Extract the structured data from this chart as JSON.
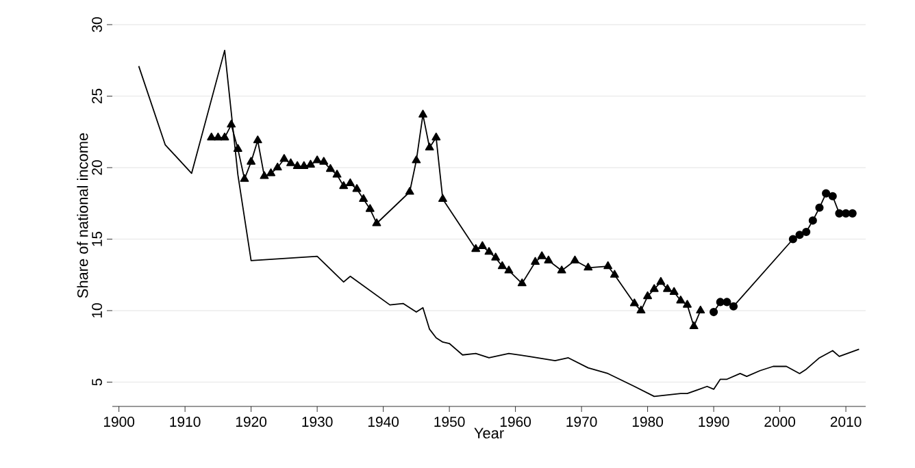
{
  "chart_data": {
    "type": "line",
    "xlabel": "Year",
    "ylabel": "Share of national income",
    "xlim": [
      1899,
      2013
    ],
    "xticks": [
      1900,
      1910,
      1920,
      1930,
      1940,
      1950,
      1960,
      1970,
      1980,
      1990,
      2000,
      2010
    ],
    "ylim": [
      3.3,
      30
    ],
    "yticks": [
      5,
      10,
      15,
      20,
      25,
      30
    ],
    "grid": "y",
    "series": [
      {
        "color": "#000000",
        "marker": "none",
        "x": [
          1903,
          1907,
          1911,
          1916,
          1918,
          1920,
          1930,
          1934,
          1935,
          1941,
          1943,
          1945,
          1946,
          1947,
          1948,
          1949,
          1950,
          1952,
          1954,
          1956,
          1959,
          1962,
          1966,
          1968,
          1971,
          1974,
          1978,
          1981,
          1985,
          1986,
          1989,
          1990,
          1991,
          1992,
          1994,
          1995,
          1997,
          1999,
          2001,
          2003,
          2004,
          2006,
          2008,
          2009,
          2012
        ],
        "values": [
          27.1,
          21.6,
          19.6,
          28.2,
          19.5,
          13.5,
          13.8,
          12.0,
          12.4,
          10.4,
          10.5,
          9.9,
          10.2,
          8.7,
          8.1,
          7.8,
          7.7,
          6.9,
          7.0,
          6.7,
          7.0,
          6.8,
          6.5,
          6.7,
          6.0,
          5.6,
          4.7,
          4.0,
          4.2,
          4.2,
          4.7,
          4.5,
          5.2,
          5.2,
          5.6,
          5.4,
          5.8,
          6.1,
          6.1,
          5.6,
          5.9,
          6.7,
          7.2,
          6.8,
          7.3
        ]
      },
      {
        "color": "#000000",
        "marker": "triangle",
        "x": [
          1914,
          1915,
          1916,
          1917,
          1918,
          1919,
          1920,
          1921,
          1922,
          1923,
          1924,
          1925,
          1926,
          1927,
          1928,
          1929,
          1930,
          1931,
          1932,
          1933,
          1934,
          1935,
          1936,
          1937,
          1938,
          1939,
          1944,
          1945,
          1946,
          1947,
          1948,
          1949,
          1954,
          1955,
          1956,
          1957,
          1958,
          1959,
          1961,
          1963,
          1964,
          1965,
          1967,
          1969,
          1971,
          1974,
          1975,
          1978,
          1979,
          1980,
          1981,
          1982,
          1983,
          1984,
          1985,
          1986,
          1987,
          1988
        ],
        "values": [
          22.1,
          22.1,
          22.1,
          23.0,
          21.3,
          19.2,
          20.4,
          21.9,
          19.4,
          19.6,
          20.0,
          20.6,
          20.3,
          20.1,
          20.1,
          20.2,
          20.5,
          20.4,
          19.9,
          19.5,
          18.7,
          18.9,
          18.5,
          17.8,
          17.1,
          16.1,
          18.3,
          20.5,
          23.7,
          21.4,
          22.1,
          17.8,
          14.3,
          14.5,
          14.1,
          13.7,
          13.1,
          12.8,
          11.9,
          13.4,
          13.8,
          13.5,
          12.8,
          13.5,
          13.0,
          13.1,
          12.5,
          10.5,
          10.0,
          11.0,
          11.5,
          12.0,
          11.5,
          11.3,
          10.7,
          10.4,
          8.9,
          10.0
        ]
      },
      {
        "color": "#000000",
        "marker": "circle",
        "x": [
          1990,
          1991,
          1992,
          1993,
          2002,
          2003,
          2004,
          2005,
          2006,
          2007,
          2008,
          2009,
          2010,
          2011
        ],
        "values": [
          9.9,
          10.6,
          10.6,
          10.3,
          15.0,
          15.3,
          15.5,
          16.3,
          17.2,
          18.2,
          18.0,
          16.8,
          16.8,
          16.8
        ]
      }
    ]
  }
}
